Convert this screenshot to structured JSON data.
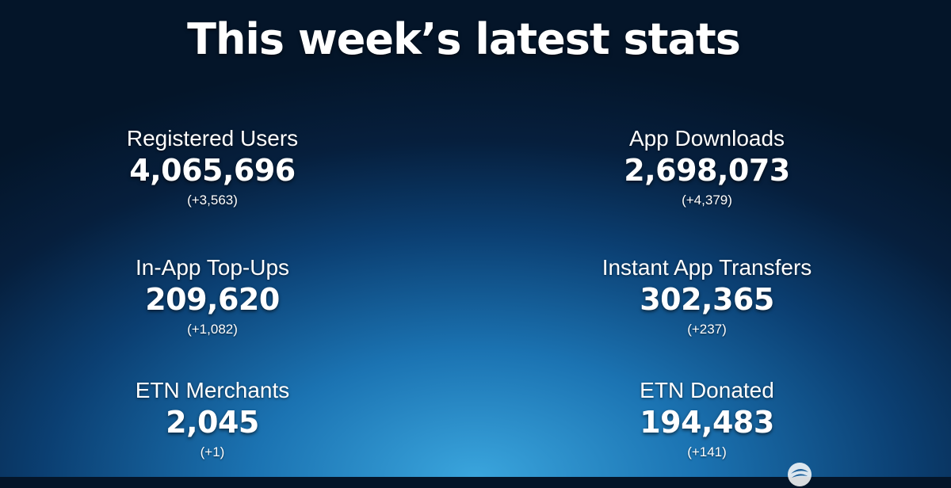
{
  "title": "This week’s latest stats",
  "stats": [
    {
      "label": "Registered Users",
      "value": "4,065,696",
      "change": "(+3,563)"
    },
    {
      "label": "App Downloads",
      "value": "2,698,073",
      "change": "(+4,379)"
    },
    {
      "label": "In-App Top-Ups",
      "value": "209,620",
      "change": "(+1,082)"
    },
    {
      "label": "Instant App Transfers",
      "value": "302,365",
      "change": "(+237)"
    },
    {
      "label": "ETN Merchants",
      "value": "2,045",
      "change": "(+1)"
    },
    {
      "label": "ETN Donated",
      "value": "194,483",
      "change": "(+141)"
    }
  ],
  "logo": {
    "icon": "etn-logo-icon"
  },
  "colors": {
    "background_center": "#3aa5dd",
    "background_edge": "#041529",
    "text": "#ffffff"
  }
}
